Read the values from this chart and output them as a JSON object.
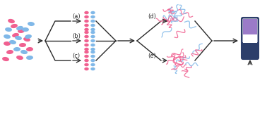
{
  "pink": "#f06090",
  "blue": "#80b8e8",
  "purple": "#9b7bc8",
  "vial_dark": "#2c3e6a",
  "lc": "#2a2a2a",
  "fs": 6.0,
  "label_a": "(a)",
  "label_b": "(b)",
  "label_c": "(c)",
  "label_d": "(d)",
  "label_e": "(e)"
}
